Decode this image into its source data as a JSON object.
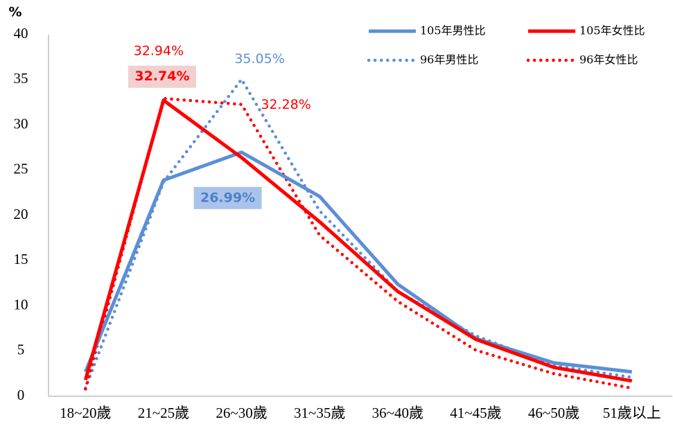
{
  "chart_data": {
    "type": "line",
    "y_label": "%",
    "categories": [
      "18~20歲",
      "21~25歲",
      "26~30歲",
      "31~35歲",
      "36~40歲",
      "41~45歲",
      "46~50歲",
      "51歲以上"
    ],
    "series": [
      {
        "name": "105年男性比",
        "color": "#5b8fd6",
        "style": "solid",
        "values": [
          2.7,
          23.9,
          26.99,
          22.1,
          12.4,
          6.4,
          3.7,
          2.7
        ],
        "value_labels": [
          null,
          null,
          "26.99%",
          null,
          null,
          null,
          null,
          null
        ]
      },
      {
        "name": "105年女性比",
        "color": "#ff0000",
        "style": "solid",
        "values": [
          1.8,
          32.74,
          26.4,
          19.3,
          11.6,
          6.3,
          3.2,
          1.7
        ],
        "value_labels": [
          null,
          "32.74%",
          null,
          null,
          null,
          null,
          null,
          null
        ]
      },
      {
        "name": "96年男性比",
        "color": "#5b8fd6",
        "style": "dotted",
        "values": [
          0.9,
          23.7,
          35.05,
          20.5,
          11.6,
          6.7,
          3.4,
          2.1
        ],
        "value_labels": [
          null,
          null,
          "35.05%",
          null,
          null,
          null,
          null,
          null
        ]
      },
      {
        "name": "96年女性比",
        "color": "#ff0000",
        "style": "dotted",
        "values": [
          0.8,
          32.94,
          32.28,
          17.8,
          10.5,
          5.1,
          2.5,
          0.9
        ],
        "value_labels": [
          null,
          "32.94%",
          "32.28%",
          null,
          null,
          null,
          null,
          null
        ]
      }
    ],
    "ylim": [
      0,
      40
    ],
    "yticks": [
      0,
      5,
      10,
      15,
      20,
      25,
      30,
      35,
      40
    ],
    "grid": false,
    "legend": "top-right"
  }
}
